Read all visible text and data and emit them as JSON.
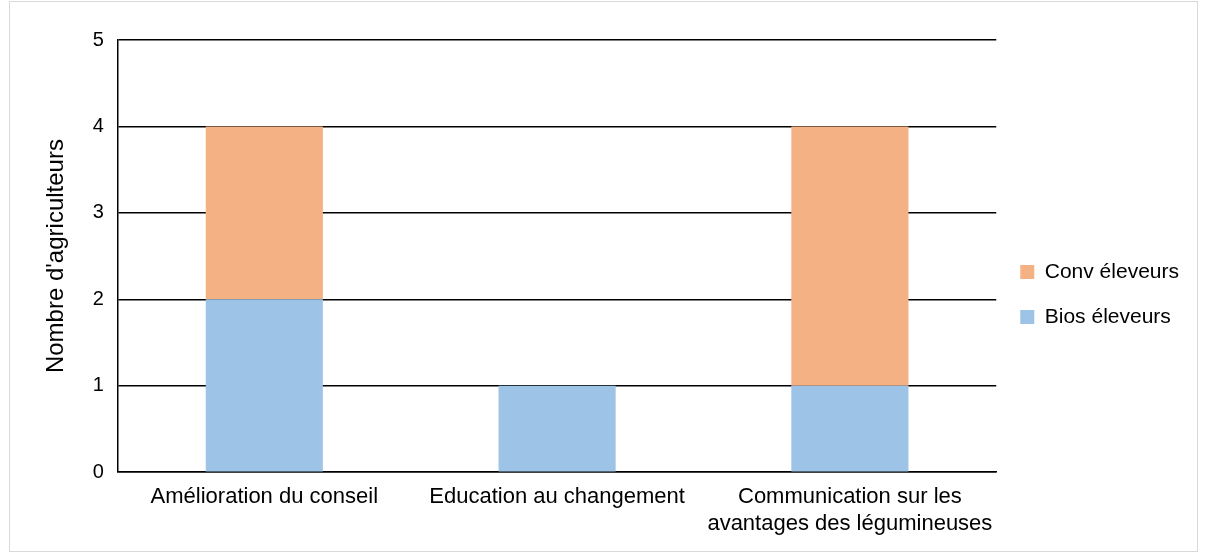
{
  "chart_data": {
    "type": "bar",
    "stacked": true,
    "ylabel": "Nombre d'agriculteurs",
    "categories": [
      "Amélioration du conseil",
      "Education au changement",
      "Communication sur les avantages des légumineuses"
    ],
    "series": [
      {
        "name": "Bios éleveurs",
        "color": "#9dc3e6",
        "values": [
          2,
          1,
          1
        ]
      },
      {
        "name": "Conv éleveurs",
        "color": "#f4b183",
        "values": [
          2,
          null,
          3
        ]
      }
    ],
    "ylim": [
      0,
      5
    ],
    "yticks": [
      0,
      1,
      2,
      3,
      4,
      5
    ],
    "grid": "y",
    "legend": "right"
  }
}
